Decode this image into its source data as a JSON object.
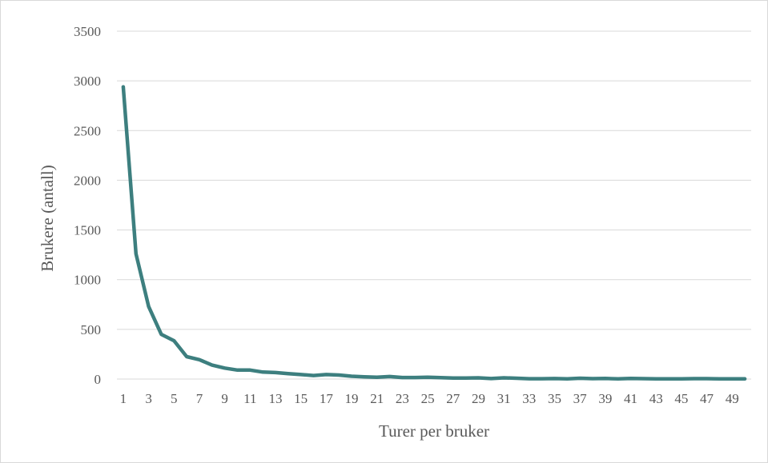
{
  "chart_data": {
    "type": "line",
    "title": "",
    "xlabel": "Turer per bruker",
    "ylabel": "Brukere (antall)",
    "ylim": [
      0,
      3500
    ],
    "y_ticks": [
      0,
      500,
      1000,
      1500,
      2000,
      2500,
      3000,
      3500
    ],
    "x_tick_labels": [
      1,
      3,
      5,
      7,
      9,
      11,
      13,
      15,
      17,
      19,
      21,
      23,
      25,
      27,
      29,
      31,
      33,
      35,
      37,
      39,
      41,
      43,
      45,
      47,
      49
    ],
    "grid": true,
    "legend": "none",
    "series": [
      {
        "color": "#3d7f7f",
        "x": [
          1,
          2,
          3,
          4,
          5,
          6,
          7,
          8,
          9,
          10,
          11,
          12,
          13,
          14,
          15,
          16,
          17,
          18,
          19,
          20,
          21,
          22,
          23,
          24,
          25,
          26,
          27,
          28,
          29,
          30,
          31,
          32,
          33,
          34,
          35,
          36,
          37,
          38,
          39,
          40,
          41,
          42,
          43,
          44,
          45,
          46,
          47,
          48,
          49,
          50
        ],
        "values": [
          2940,
          1260,
          730,
          450,
          385,
          225,
          195,
          140,
          110,
          90,
          90,
          70,
          65,
          55,
          45,
          35,
          45,
          40,
          28,
          22,
          18,
          25,
          15,
          15,
          18,
          14,
          10,
          10,
          12,
          5,
          12,
          8,
          3,
          3,
          5,
          2,
          8,
          4,
          6,
          2,
          6,
          4,
          2,
          2,
          2,
          4,
          4,
          2,
          2,
          2
        ]
      }
    ]
  }
}
